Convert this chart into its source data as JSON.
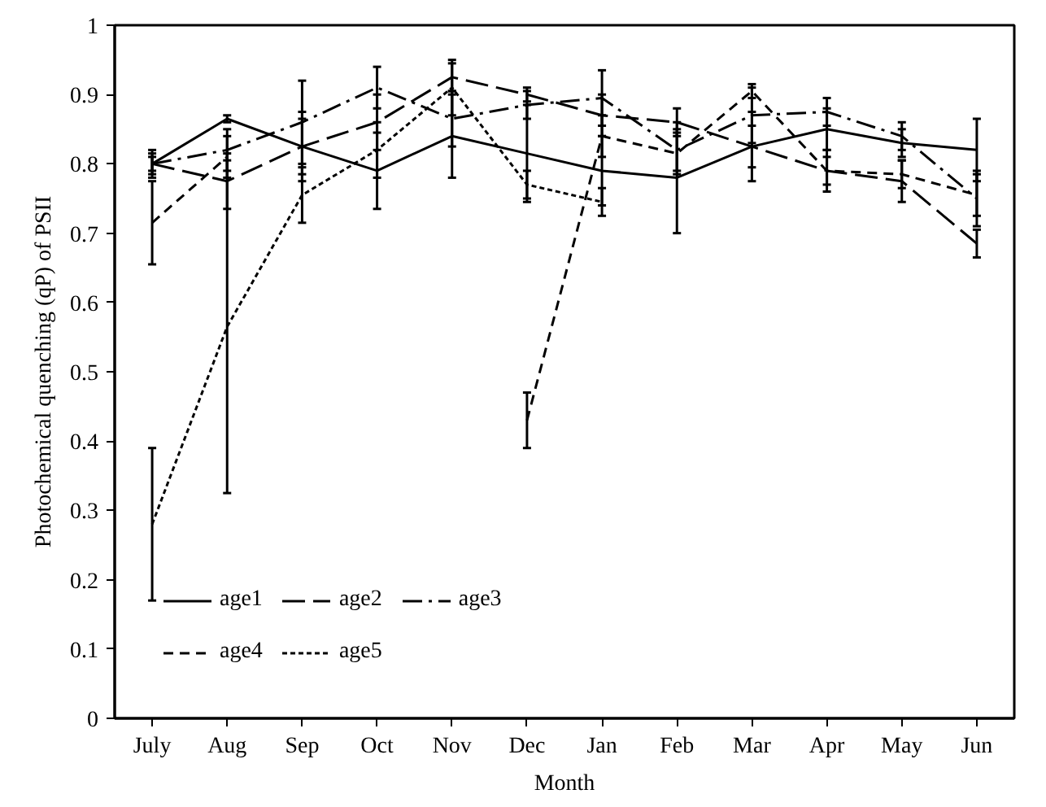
{
  "chart_data": {
    "type": "line",
    "xlabel": "Month",
    "ylabel": "Photochemical quenching (qP) of PSII",
    "categories": [
      "July",
      "Aug",
      "Sep",
      "Oct",
      "Nov",
      "Dec",
      "Jan",
      "Feb",
      "Mar",
      "Apr",
      "May",
      "Jun"
    ],
    "ylim": [
      0,
      1
    ],
    "yticks": [
      0,
      {
        "value": 0.1,
        "label": "0.1"
      },
      {
        "value": 0.2,
        "label": "0.2"
      },
      {
        "value": 0.3,
        "label": "0.3"
      },
      {
        "value": 0.4,
        "label": "0.4"
      },
      {
        "value": 0.5,
        "label": "0.5"
      },
      {
        "value": 0.6,
        "label": "0.6"
      },
      {
        "value": 0.7,
        "label": "0.7"
      },
      {
        "value": 0.8,
        "label": "0.8"
      },
      {
        "value": 0.9,
        "label": "0.9"
      },
      1
    ],
    "grid": false,
    "legend": "bottom left",
    "series": [
      {
        "name": "age1",
        "color": "#000000",
        "line_style": "solid",
        "values": [
          0.8,
          0.865,
          0.825,
          0.79,
          0.84,
          0.815,
          0.79,
          0.78,
          0.825,
          0.85,
          0.83,
          0.82
        ],
        "errors": [
          0.02,
          0.005,
          0.04,
          0.055,
          0.06,
          0.07,
          0.05,
          0.08,
          0.05,
          0.03,
          0.02,
          0.045
        ]
      },
      {
        "name": "age2",
        "color": "#000000",
        "line_style": "longdash",
        "values": [
          0.8,
          0.775,
          0.825,
          0.86,
          0.925,
          0.9,
          0.87,
          0.86,
          0.825,
          0.79,
          0.775,
          0.685
        ],
        "errors": [
          0.015,
          0.04,
          0.05,
          0.04,
          0.02,
          0.01,
          0.03,
          0.02,
          0.03,
          0.03,
          0.03,
          0.02
        ]
      },
      {
        "name": "age3",
        "color": "#000000",
        "line_style": "dashdot",
        "values": [
          0.8,
          0.82,
          0.86,
          0.91,
          0.865,
          0.885,
          0.895,
          0.82,
          0.87,
          0.875,
          0.84,
          0.75
        ],
        "errors": [
          0.01,
          0.03,
          0.06,
          0.03,
          0.04,
          0.02,
          0.04,
          0.03,
          0.04,
          0.02,
          0.02,
          0.04
        ]
      },
      {
        "name": "age4",
        "color": "#000000",
        "line_style": "dashed",
        "values": [
          0.715,
          0.81,
          null,
          null,
          null,
          0.43,
          0.84,
          0.815,
          0.905,
          0.79,
          0.785,
          0.755
        ],
        "errors": [
          0.06,
          0.03,
          null,
          null,
          null,
          0.04,
          0.03,
          0.03,
          0.01,
          0.02,
          0.02,
          0.03
        ]
      },
      {
        "name": "age5",
        "color": "#000000",
        "line_style": "dotted",
        "values": [
          0.28,
          0.565,
          0.755,
          0.82,
          0.91,
          0.77,
          0.745,
          null,
          null,
          null,
          null,
          null
        ],
        "errors": [
          0.11,
          0.24,
          0.04,
          0.04,
          0.04,
          0.02,
          0.02,
          null,
          null,
          null,
          null,
          null
        ]
      }
    ]
  }
}
